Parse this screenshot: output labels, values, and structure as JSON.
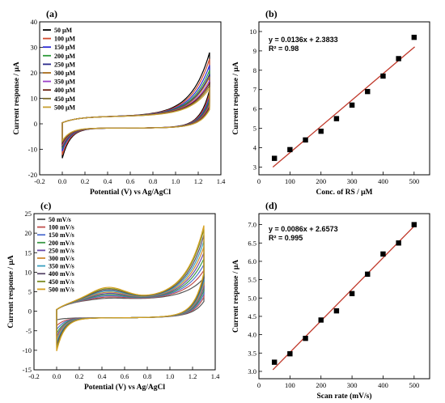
{
  "chart_data": [
    {
      "panel": "(a)",
      "type": "line",
      "xlabel": "Potential (V) vs Ag/AgCl",
      "ylabel": "Current response / μA",
      "xlim": [
        -0.2,
        1.4
      ],
      "ylim": [
        -20,
        40
      ],
      "xticks": [
        -0.2,
        0.0,
        0.2,
        0.4,
        0.6,
        0.8,
        1.0,
        1.2,
        1.4
      ],
      "yticks": [
        -20,
        -10,
        0,
        10,
        20,
        30,
        40
      ],
      "legend_position": "top-left",
      "series": [
        {
          "name": "50 μM",
          "color": "#000000",
          "anodic_peak": 28.0,
          "cathodic_min": -13.8
        },
        {
          "name": "100 μM",
          "color": "#d14a2c",
          "anodic_peak": 25.5,
          "cathodic_min": -12.5
        },
        {
          "name": "150 μM",
          "color": "#2b2bd6",
          "anodic_peak": 23.0,
          "cathodic_min": -11.0
        },
        {
          "name": "200 μM",
          "color": "#2e9a3a",
          "anodic_peak": 21.0,
          "cathodic_min": -10.0
        },
        {
          "name": "250 μM",
          "color": "#2a2a8a",
          "anodic_peak": 19.5,
          "cathodic_min": -9.5
        },
        {
          "name": "300 μM",
          "color": "#a86b1a",
          "anodic_peak": 18.5,
          "cathodic_min": -9.0
        },
        {
          "name": "350 μM",
          "color": "#9b40c8",
          "anodic_peak": 17.0,
          "cathodic_min": -8.5
        },
        {
          "name": "400 μM",
          "color": "#6a2010",
          "anodic_peak": 16.0,
          "cathodic_min": -8.0
        },
        {
          "name": "450 μM",
          "color": "#7a6a2a",
          "anodic_peak": 15.0,
          "cathodic_min": -7.5
        },
        {
          "name": "500 μM",
          "color": "#c8a030",
          "anodic_peak": 14.0,
          "cathodic_min": -7.0
        }
      ]
    },
    {
      "panel": "(b)",
      "type": "scatter",
      "xlabel": "Conc. of RS / μM",
      "ylabel": "Current response / μA",
      "xlim": [
        0,
        550
      ],
      "ylim": [
        2.6,
        10.5
      ],
      "xticks": [
        0,
        100,
        200,
        300,
        400,
        500
      ],
      "yticks": [
        3,
        4,
        5,
        6,
        7,
        8,
        9,
        10
      ],
      "x": [
        50,
        100,
        150,
        200,
        250,
        300,
        350,
        400,
        450,
        500
      ],
      "y": [
        3.45,
        3.9,
        4.4,
        4.85,
        5.5,
        6.2,
        6.9,
        7.7,
        8.6,
        9.7
      ],
      "fit": {
        "slope": 0.0136,
        "intercept": 2.3833,
        "color": "#c0392b"
      },
      "equation": "y = 0.0136x + 2.3833",
      "r2": "R² = 0.98"
    },
    {
      "panel": "(c)",
      "type": "line",
      "xlabel": "Potential (V) vs Ag/AgCl",
      "ylabel": "Current response / μA",
      "xlim": [
        -0.2,
        1.4
      ],
      "ylim": [
        -15,
        25
      ],
      "xticks": [
        -0.2,
        0.0,
        0.2,
        0.4,
        0.6,
        0.8,
        1.0,
        1.2,
        1.4
      ],
      "yticks": [
        -15,
        -10,
        -5,
        0,
        5,
        10,
        15,
        20,
        25
      ],
      "legend_position": "top-left",
      "series": [
        {
          "name": "50 mV/s",
          "color": "#555555",
          "anodic_peak": 8.5,
          "cathodic_min": -2.5,
          "bump": 0.5
        },
        {
          "name": "100 mV/s",
          "color": "#c0504d",
          "anodic_peak": 10.5,
          "cathodic_min": -4.0,
          "bump": 0.8
        },
        {
          "name": "150 mV/s",
          "color": "#4f6fd0",
          "anodic_peak": 12.0,
          "cathodic_min": -5.0,
          "bump": 1.1
        },
        {
          "name": "200 mV/s",
          "color": "#3a9a48",
          "anodic_peak": 13.5,
          "cathodic_min": -6.0,
          "bump": 1.4
        },
        {
          "name": "250 mV/s",
          "color": "#6a4aa8",
          "anodic_peak": 15.0,
          "cathodic_min": -6.8,
          "bump": 1.7
        },
        {
          "name": "300 mV/s",
          "color": "#d08a30",
          "anodic_peak": 16.5,
          "cathodic_min": -7.5,
          "bump": 2.0
        },
        {
          "name": "350 mV/s",
          "color": "#3aa0c0",
          "anodic_peak": 18.0,
          "cathodic_min": -8.3,
          "bump": 2.3
        },
        {
          "name": "400 mV/s",
          "color": "#5a4a6a",
          "anodic_peak": 19.5,
          "cathodic_min": -9.0,
          "bump": 2.6
        },
        {
          "name": "450 mV/s",
          "color": "#7a8a20",
          "anodic_peak": 21.0,
          "cathodic_min": -9.8,
          "bump": 2.9
        },
        {
          "name": "500 mV/s",
          "color": "#d6a020",
          "anodic_peak": 22.0,
          "cathodic_min": -10.5,
          "bump": 3.2
        }
      ]
    },
    {
      "panel": "(d)",
      "type": "scatter",
      "xlabel": "Scan rate (mV/s)",
      "ylabel": "Current response / μA",
      "xlim": [
        0,
        550
      ],
      "ylim": [
        2.8,
        7.3
      ],
      "xticks": [
        0,
        100,
        200,
        300,
        400,
        500
      ],
      "yticks": [
        3.0,
        3.5,
        4.0,
        4.5,
        5.0,
        5.5,
        6.0,
        6.5,
        7.0
      ],
      "x": [
        50,
        100,
        150,
        200,
        250,
        300,
        350,
        400,
        450,
        500
      ],
      "y": [
        3.25,
        3.48,
        3.9,
        4.4,
        4.65,
        5.12,
        5.65,
        6.2,
        6.5,
        7.0
      ],
      "fit": {
        "slope": 0.0086,
        "intercept": 2.6573,
        "color": "#c0392b"
      },
      "equation": "y = 0.0086x + 2.6573",
      "r2": "R² = 0.995"
    }
  ]
}
